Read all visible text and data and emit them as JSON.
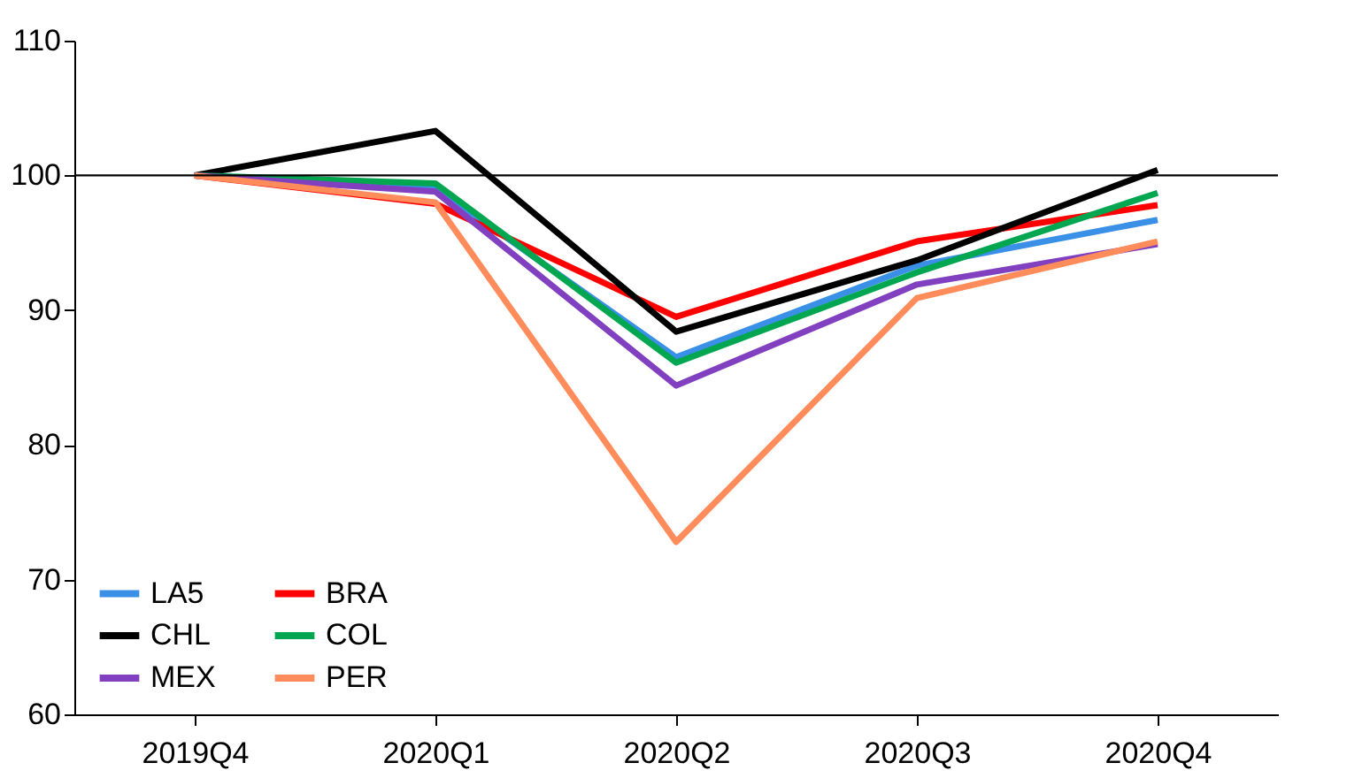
{
  "chart_data": {
    "type": "line",
    "categories": [
      "2019Q4",
      "2020Q1",
      "2020Q2",
      "2020Q3",
      "2020Q4"
    ],
    "series": [
      {
        "name": "LA5",
        "color": "#3a8fe6",
        "values": [
          100,
          99.1,
          86.5,
          93.3,
          96.7
        ]
      },
      {
        "name": "BRA",
        "color": "#ff0000",
        "values": [
          100,
          97.9,
          89.5,
          95.1,
          97.8
        ]
      },
      {
        "name": "CHL",
        "color": "#000000",
        "values": [
          100,
          103.3,
          88.4,
          93.7,
          100.4
        ]
      },
      {
        "name": "COL",
        "color": "#00a650",
        "values": [
          100,
          99.4,
          86.1,
          92.8,
          98.7
        ]
      },
      {
        "name": "MEX",
        "color": "#8040c0",
        "values": [
          100,
          98.8,
          84.4,
          91.9,
          94.9
        ]
      },
      {
        "name": "PER",
        "color": "#ff8c5a",
        "values": [
          100,
          98.0,
          72.8,
          90.9,
          95.1
        ]
      }
    ],
    "ylim": [
      60,
      110
    ],
    "yticks": [
      60,
      70,
      80,
      90,
      100,
      110
    ],
    "ref_lines": [
      {
        "axis": "y",
        "value": 100,
        "color": "#000000"
      }
    ],
    "grid": false,
    "legend": "bottom left",
    "marker": "none",
    "line_style": "solid"
  }
}
